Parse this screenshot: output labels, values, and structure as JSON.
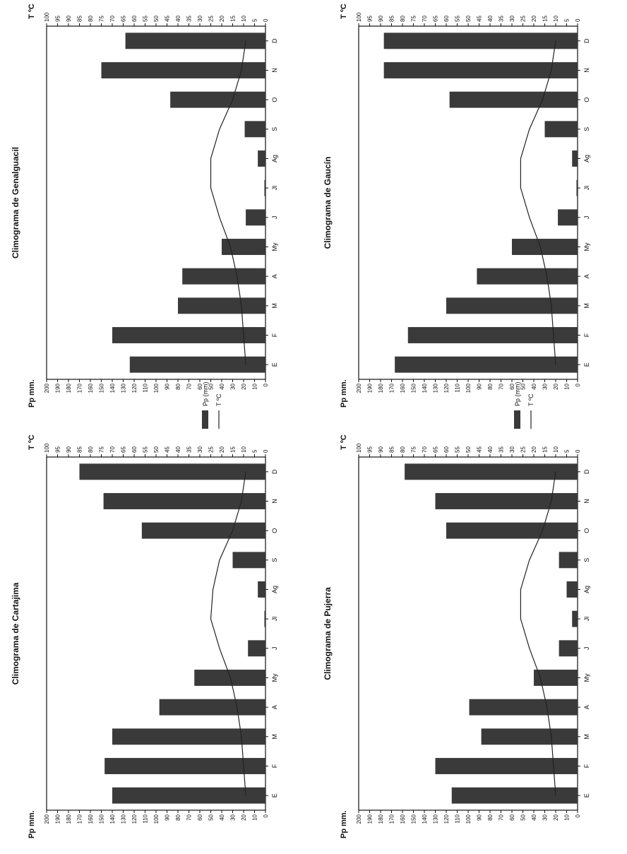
{
  "chart_data": [
    {
      "type": "bar",
      "title": "Climograma de Cartajima",
      "ylabel": "Pp mm.",
      "y2label": "T ºC",
      "months": [
        "E",
        "F",
        "M",
        "A",
        "My",
        "J",
        "Jl",
        "Ag",
        "S",
        "O",
        "N",
        "D"
      ],
      "series": [
        {
          "name": "Pp (mm)",
          "type": "bar",
          "values": [
            140,
            147,
            140,
            97,
            65,
            16,
            1,
            7,
            30,
            113,
            148,
            170
          ]
        },
        {
          "name": "T ºC",
          "type": "line",
          "values": [
            9,
            10,
            11,
            13,
            16,
            21,
            25,
            24,
            21,
            15,
            11,
            9
          ]
        }
      ],
      "ylim": [
        0,
        200
      ],
      "y2lim": [
        0,
        100
      ],
      "yticks": [
        0,
        10,
        20,
        30,
        40,
        50,
        60,
        70,
        80,
        90,
        100,
        110,
        120,
        130,
        140,
        150,
        160,
        170,
        180,
        190,
        200
      ],
      "y2ticks": [
        0,
        5,
        10,
        15,
        20,
        25,
        30,
        35,
        40,
        45,
        50,
        55,
        60,
        65,
        70,
        75,
        80,
        85,
        90,
        95,
        100
      ]
    },
    {
      "type": "bar",
      "title": "Climograma de Pujerra",
      "ylabel": "Pp mm.",
      "y2label": "T ºC",
      "months": [
        "E",
        "F",
        "M",
        "A",
        "My",
        "J",
        "Jl",
        "Ag",
        "S",
        "O",
        "N",
        "D"
      ],
      "series": [
        {
          "name": "Pp (mm)",
          "type": "bar",
          "values": [
            115,
            130,
            88,
            99,
            40,
            17,
            5,
            10,
            17,
            120,
            130,
            158
          ]
        },
        {
          "name": "T ºC",
          "type": "line",
          "values": [
            10,
            11,
            12,
            14,
            17,
            22,
            26,
            26,
            22,
            16,
            12,
            10
          ]
        }
      ],
      "ylim": [
        0,
        200
      ],
      "y2lim": [
        0,
        100
      ],
      "yticks": [
        0,
        10,
        20,
        30,
        40,
        50,
        60,
        70,
        80,
        90,
        100,
        110,
        120,
        130,
        140,
        150,
        160,
        170,
        180,
        190,
        200
      ],
      "y2ticks": [
        0,
        5,
        10,
        15,
        20,
        25,
        30,
        35,
        40,
        45,
        50,
        55,
        60,
        65,
        70,
        75,
        80,
        85,
        90,
        95,
        100
      ]
    },
    {
      "type": "bar",
      "title": "Climograma de Genalguacil",
      "ylabel": "Pp mm.",
      "y2label": "T ºC",
      "months": [
        "E",
        "F",
        "M",
        "A",
        "My",
        "J",
        "Jl",
        "Ag",
        "S",
        "O",
        "N",
        "D"
      ],
      "series": [
        {
          "name": "Pp (mm)",
          "type": "bar",
          "values": [
            124,
            140,
            80,
            76,
            40,
            18,
            1,
            7,
            19,
            87,
            150,
            128
          ]
        },
        {
          "name": "T ºC",
          "type": "line",
          "values": [
            9,
            10,
            11,
            13,
            16,
            21,
            25,
            25,
            21,
            15,
            11,
            9
          ]
        }
      ],
      "ylim": [
        0,
        200
      ],
      "y2lim": [
        0,
        100
      ],
      "yticks": [
        0,
        10,
        20,
        30,
        40,
        50,
        60,
        70,
        80,
        90,
        100,
        110,
        120,
        130,
        140,
        150,
        160,
        170,
        180,
        190,
        200
      ],
      "y2ticks": [
        0,
        5,
        10,
        15,
        20,
        25,
        30,
        35,
        40,
        45,
        50,
        55,
        60,
        65,
        70,
        75,
        80,
        85,
        90,
        95,
        100
      ]
    },
    {
      "type": "bar",
      "title": "Climograma de Gaucín",
      "ylabel": "Pp mm.",
      "y2label": "T ºC",
      "months": [
        "E",
        "F",
        "M",
        "A",
        "My",
        "J",
        "Jl",
        "Ag",
        "S",
        "O",
        "N",
        "D"
      ],
      "series": [
        {
          "name": "Pp (mm)",
          "type": "bar",
          "values": [
            167,
            155,
            120,
            92,
            60,
            18,
            1,
            5,
            30,
            117,
            177,
            177
          ]
        },
        {
          "name": "T ºC",
          "type": "line",
          "values": [
            10,
            11,
            12,
            14,
            17,
            22,
            26,
            26,
            22,
            16,
            12,
            10
          ]
        }
      ],
      "ylim": [
        0,
        200
      ],
      "y2lim": [
        0,
        100
      ],
      "yticks": [
        0,
        10,
        20,
        30,
        40,
        50,
        60,
        70,
        80,
        90,
        100,
        110,
        120,
        130,
        140,
        150,
        160,
        170,
        180,
        190,
        200
      ],
      "y2ticks": [
        0,
        5,
        10,
        15,
        20,
        25,
        30,
        35,
        40,
        45,
        50,
        55,
        60,
        65,
        70,
        75,
        80,
        85,
        90,
        95,
        100
      ]
    }
  ],
  "colors": {
    "bar": "#3a3a3a",
    "line": "#222222",
    "axis": "#111111"
  }
}
